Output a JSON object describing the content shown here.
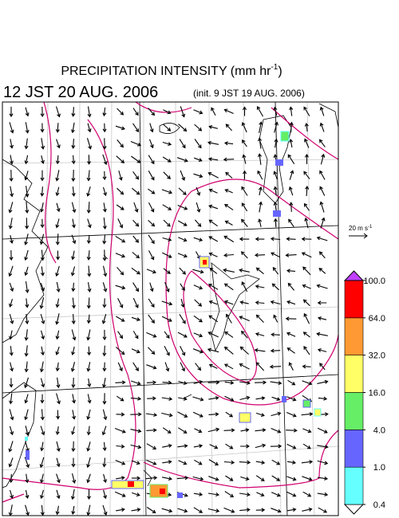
{
  "header": {
    "title": {
      "text": "PRECIPITATION INTENSITY (mm hr",
      "sup": "-1",
      "close": ")"
    },
    "valid_time": "12 JST 20 AUG. 2006",
    "init_time": "(init. 9 JST 19 AUG. 2006)"
  },
  "reference_vector": {
    "text": "20 m s",
    "sup": "-1"
  },
  "colorbar": {
    "levels": [
      0.4,
      {
        "value": 1.0,
        "label": "1.0"
      },
      {
        "value": 4.0,
        "label": "4.0"
      },
      {
        "value": 16.0,
        "label": "16.0"
      },
      {
        "value": 32.0,
        "label": "32.0"
      },
      {
        "value": 64.0,
        "label": "64.0"
      },
      {
        "value": 100.0,
        "label": "100.0"
      }
    ],
    "colors": [
      "#ffffff",
      "#66ffff",
      "#6666ff",
      "#66ee66",
      "#ffff66",
      "#ff9933",
      "#ff0000",
      "#c040ff"
    ]
  }
}
